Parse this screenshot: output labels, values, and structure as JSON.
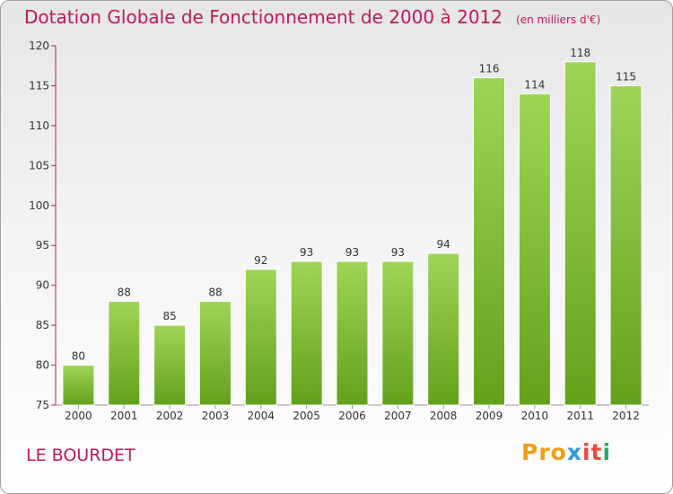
{
  "title": "Dotation Globale de Fonctionnement de 2000 à 2012",
  "unit_note": "(en milliers d'€)",
  "place_name": "LE BOURDET",
  "logo": {
    "text": "Proxiti",
    "parts": [
      "Pro",
      "x",
      "it",
      "i"
    ]
  },
  "colors": {
    "title": "#c2185b",
    "bar_top": "#9fd557",
    "bar_bottom": "#63a11b",
    "axis": "#c2185b"
  },
  "chart_data": {
    "type": "bar",
    "title": "Dotation Globale de Fonctionnement de 2000 à 2012",
    "xlabel": "",
    "ylabel": "",
    "categories": [
      "2000",
      "2001",
      "2002",
      "2003",
      "2004",
      "2005",
      "2006",
      "2007",
      "2008",
      "2009",
      "2010",
      "2011",
      "2012"
    ],
    "values": [
      80,
      88,
      85,
      88,
      92,
      93,
      93,
      93,
      94,
      116,
      114,
      118,
      115
    ],
    "ylim": [
      75,
      120
    ],
    "yticks": [
      75,
      80,
      85,
      90,
      95,
      100,
      105,
      110,
      115,
      120
    ],
    "grid": false,
    "data_labels": true
  }
}
